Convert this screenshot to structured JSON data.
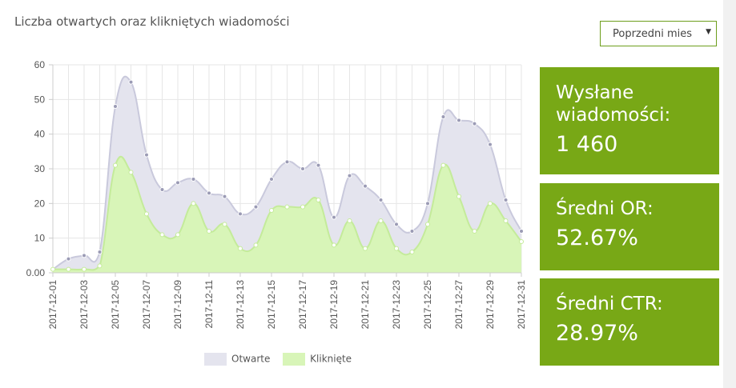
{
  "header": {
    "title": "Liczba otwartych oraz klikniętych wiadomości"
  },
  "period_select": {
    "value": "Poprzedni mies",
    "arrow_icon": "triangle-down-icon"
  },
  "colors": {
    "opened_fill": "#e4e4ee",
    "opened_line": "#c9c9dc",
    "opened_point": "#9b9bb5",
    "clicked_fill": "#d8f5b8",
    "clicked_line": "#c4eb9a",
    "card_bg": "#78a816",
    "grid": "#e6e6e6"
  },
  "cards": [
    {
      "label": "Wysłane wiadomości:",
      "value": "1 460"
    },
    {
      "label": "Średni OR:",
      "value": "52.67%"
    },
    {
      "label": "Średni CTR:",
      "value": "28.97%"
    }
  ],
  "legend": [
    {
      "label": "Otwarte",
      "color": "#e4e4ee"
    },
    {
      "label": "Kliknięte",
      "color": "#d8f5b8"
    }
  ],
  "chart_data": {
    "type": "area",
    "y_tick_labels": [
      "0.00",
      "10",
      "20",
      "30",
      "40",
      "50",
      "60"
    ],
    "ylim": [
      0,
      60
    ],
    "grid": true,
    "legend_position": "bottom",
    "x": [
      "2017-12-01",
      "2017-12-02",
      "2017-12-03",
      "2017-12-04",
      "2017-12-05",
      "2017-12-06",
      "2017-12-07",
      "2017-12-08",
      "2017-12-09",
      "2017-12-10",
      "2017-12-11",
      "2017-12-12",
      "2017-12-13",
      "2017-12-14",
      "2017-12-15",
      "2017-12-16",
      "2017-12-17",
      "2017-12-18",
      "2017-12-19",
      "2017-12-20",
      "2017-12-21",
      "2017-12-22",
      "2017-12-23",
      "2017-12-24",
      "2017-12-25",
      "2017-12-26",
      "2017-12-27",
      "2017-12-28",
      "2017-12-29",
      "2017-12-30",
      "2017-12-31"
    ],
    "x_tick_labels": [
      "2017-12-01",
      "2017-12-03",
      "2017-12-05",
      "2017-12-07",
      "2017-12-09",
      "2017-12-11",
      "2017-12-13",
      "2017-12-15",
      "2017-12-17",
      "2017-12-19",
      "2017-12-21",
      "2017-12-23",
      "2017-12-25",
      "2017-12-27",
      "2017-12-29",
      "2017-12-31"
    ],
    "series": [
      {
        "name": "Otwarte",
        "values": [
          1,
          4,
          5,
          6,
          48,
          55,
          34,
          24,
          26,
          27,
          23,
          22,
          17,
          19,
          27,
          32,
          30,
          31,
          16,
          28,
          25,
          21,
          14,
          12,
          20,
          45,
          44,
          43,
          37,
          21,
          12
        ]
      },
      {
        "name": "Kliknięte",
        "values": [
          1,
          1,
          1,
          2,
          31,
          29,
          17,
          11,
          11,
          20,
          12,
          14,
          7,
          8,
          18,
          19,
          19,
          21,
          8,
          15,
          7,
          15,
          7,
          6,
          14,
          31,
          22,
          12,
          20,
          15,
          9
        ]
      }
    ]
  }
}
